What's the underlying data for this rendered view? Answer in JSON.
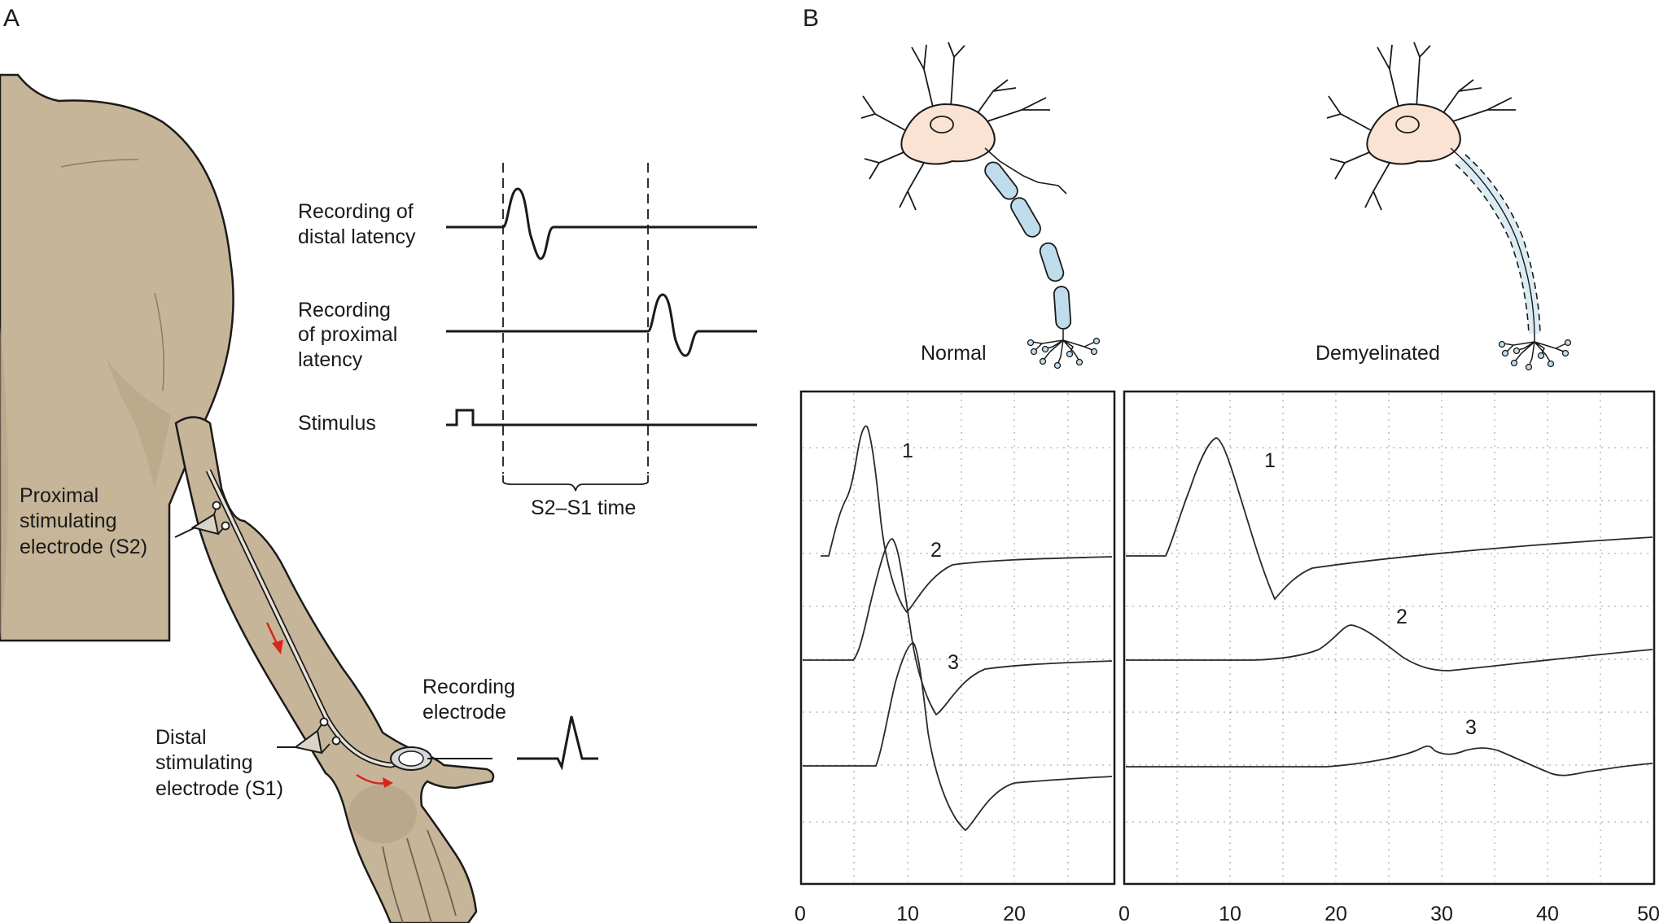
{
  "panel_a": {
    "letter": "A",
    "labels": {
      "distal_recording_1": "Recording of",
      "distal_recording_2": "distal latency",
      "proximal_recording_1": "Recording",
      "proximal_recording_2": "of proximal",
      "proximal_recording_3": "latency",
      "stimulus": "Stimulus",
      "interval": "S2–S1 time",
      "proximal_electrode_1": "Proximal",
      "proximal_electrode_2": "stimulating",
      "proximal_electrode_3": "electrode (S2)",
      "recording_electrode_1": "Recording",
      "recording_electrode_2": "electrode",
      "distal_electrode_1": "Distal",
      "distal_electrode_2": "stimulating",
      "distal_electrode_3": "electrode (S1)"
    }
  },
  "panel_b": {
    "letter": "B",
    "normal_label": "Normal",
    "demyelinated_label": "Demyelinated",
    "normal_x_ticks": [
      "0",
      "10",
      "20"
    ],
    "demyelinated_x_ticks": [
      "0",
      "10",
      "20",
      "30",
      "40",
      "50"
    ],
    "normal_trace_numbers": [
      "1",
      "2",
      "3"
    ],
    "demyelinated_trace_numbers": [
      "1",
      "2",
      "3"
    ]
  },
  "colors": {
    "skin": "#c6b598",
    "skin_shadow": "#b3a083",
    "neuron_body": "#fbe3d3",
    "myelin": "#bfdcec",
    "arrow_red": "#d9261c",
    "grid": "#9a9a9a"
  }
}
